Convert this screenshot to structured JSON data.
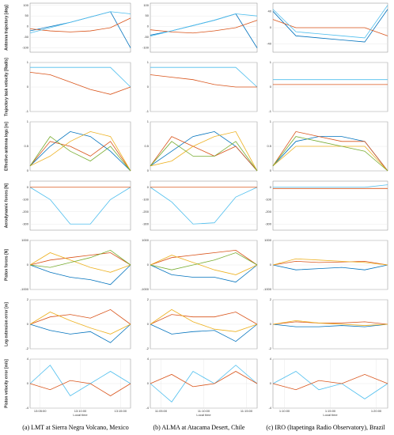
{
  "captions": [
    "(a) LMT at Sierra Negra Volcano, Mexico",
    "(b) ALMA at Atacama Desert, Chile",
    "(c) IRO (Itapetinga Radio Observatory), Brazil"
  ],
  "chart_data": [
    {
      "type": "line",
      "ylabel": "Antenna trajectory [deg]",
      "x": [
        0,
        2,
        4,
        6,
        8,
        10
      ],
      "xlim": [
        0,
        10
      ],
      "ylim": [
        -120,
        110
      ],
      "yticks": [
        -100,
        -50,
        0,
        50,
        100
      ],
      "series": [
        {
          "color": "#0072bd",
          "values": [
            -20,
            0,
            20,
            45,
            70,
            -100
          ]
        },
        {
          "color": "#d95319",
          "values": [
            -10,
            -20,
            -25,
            -20,
            -5,
            40
          ]
        },
        {
          "color": "#4dbeee",
          "values": [
            -30,
            -5,
            20,
            45,
            70,
            60
          ]
        }
      ]
    },
    {
      "type": "line",
      "x": [
        0,
        2,
        4,
        6,
        8,
        10
      ],
      "xlim": [
        0,
        10
      ],
      "ylim": [
        -120,
        110
      ],
      "yticks": [
        -100,
        -50,
        0,
        50,
        100
      ],
      "series": [
        {
          "color": "#0072bd",
          "values": [
            -40,
            -20,
            5,
            30,
            60,
            -100
          ]
        },
        {
          "color": "#d95319",
          "values": [
            -15,
            -25,
            -30,
            -20,
            -5,
            30
          ]
        },
        {
          "color": "#4dbeee",
          "values": [
            -45,
            -20,
            5,
            30,
            60,
            50
          ]
        }
      ]
    },
    {
      "type": "line",
      "x": [
        0,
        2,
        4,
        6,
        8,
        10
      ],
      "xlim": [
        0,
        10
      ],
      "ylim": [
        -60,
        60
      ],
      "yticks": [
        -40,
        0,
        40
      ],
      "series": [
        {
          "color": "#0072bd",
          "values": [
            40,
            -20,
            -25,
            -30,
            -35,
            45
          ]
        },
        {
          "color": "#d95319",
          "values": [
            20,
            0,
            0,
            0,
            0,
            -20
          ]
        },
        {
          "color": "#4dbeee",
          "values": [
            45,
            -10,
            -15,
            -20,
            -25,
            55
          ]
        }
      ]
    },
    {
      "type": "line",
      "ylabel": "Trajectory task velocity [Rad/s]",
      "x": [
        0,
        2,
        4,
        6,
        8,
        10
      ],
      "xlim": [
        0,
        10
      ],
      "ylim": [
        -1,
        1
      ],
      "yticks": [
        -1,
        0,
        1
      ],
      "series": [
        {
          "color": "#4dbeee",
          "values": [
            0.8,
            0.8,
            0.8,
            0.8,
            0.8,
            0
          ]
        },
        {
          "color": "#d95319",
          "values": [
            0.6,
            0.5,
            0.2,
            -0.1,
            -0.3,
            0
          ]
        }
      ]
    },
    {
      "type": "line",
      "x": [
        0,
        2,
        4,
        6,
        8,
        10
      ],
      "xlim": [
        0,
        10
      ],
      "ylim": [
        -1,
        1
      ],
      "yticks": [
        -1,
        0,
        1
      ],
      "series": [
        {
          "color": "#4dbeee",
          "values": [
            0.8,
            0.8,
            0.8,
            0.8,
            0.8,
            0
          ]
        },
        {
          "color": "#d95319",
          "values": [
            0.5,
            0.4,
            0.3,
            0.1,
            0,
            0
          ]
        }
      ]
    },
    {
      "type": "line",
      "x": [
        0,
        2,
        4,
        6,
        8,
        10
      ],
      "xlim": [
        0,
        10
      ],
      "ylim": [
        -1,
        1
      ],
      "yticks": [
        -1,
        0,
        1
      ],
      "series": [
        {
          "color": "#4dbeee",
          "values": [
            0.3,
            0.3,
            0.3,
            0.3,
            0.3,
            0.3
          ]
        },
        {
          "color": "#d95319",
          "values": [
            0.1,
            0.1,
            0.1,
            0.1,
            0.1,
            0.1
          ]
        }
      ]
    },
    {
      "type": "line",
      "ylabel": "Effective antenna legs [m]",
      "x": [
        0,
        2,
        4,
        6,
        8,
        10
      ],
      "xlim": [
        0,
        10
      ],
      "ylim": [
        0,
        1
      ],
      "yticks": [
        0,
        0.5,
        1
      ],
      "series": [
        {
          "color": "#0072bd",
          "values": [
            0.1,
            0.5,
            0.8,
            0.7,
            0.4,
            0
          ]
        },
        {
          "color": "#d95319",
          "values": [
            0.1,
            0.6,
            0.5,
            0.3,
            0.6,
            0
          ]
        },
        {
          "color": "#edb120",
          "values": [
            0.1,
            0.3,
            0.6,
            0.8,
            0.7,
            0
          ]
        },
        {
          "color": "#77ac30",
          "values": [
            0.1,
            0.7,
            0.4,
            0.2,
            0.5,
            0
          ]
        }
      ]
    },
    {
      "type": "line",
      "x": [
        0,
        2,
        4,
        6,
        8,
        10
      ],
      "xlim": [
        0,
        10
      ],
      "ylim": [
        0,
        1
      ],
      "yticks": [
        0,
        0.5,
        1
      ],
      "series": [
        {
          "color": "#0072bd",
          "values": [
            0.1,
            0.4,
            0.7,
            0.8,
            0.5,
            0
          ]
        },
        {
          "color": "#d95319",
          "values": [
            0.1,
            0.7,
            0.5,
            0.3,
            0.5,
            0
          ]
        },
        {
          "color": "#edb120",
          "values": [
            0.1,
            0.2,
            0.5,
            0.7,
            0.8,
            0
          ]
        },
        {
          "color": "#77ac30",
          "values": [
            0.1,
            0.6,
            0.3,
            0.3,
            0.6,
            0
          ]
        }
      ]
    },
    {
      "type": "line",
      "x": [
        0,
        2,
        4,
        6,
        8,
        10
      ],
      "xlim": [
        0,
        10
      ],
      "ylim": [
        0,
        1
      ],
      "yticks": [
        0,
        0.5,
        1
      ],
      "series": [
        {
          "color": "#0072bd",
          "values": [
            0.1,
            0.6,
            0.7,
            0.7,
            0.6,
            0
          ]
        },
        {
          "color": "#d95319",
          "values": [
            0.1,
            0.8,
            0.7,
            0.6,
            0.6,
            0
          ]
        },
        {
          "color": "#edb120",
          "values": [
            0.1,
            0.5,
            0.5,
            0.5,
            0.5,
            0
          ]
        },
        {
          "color": "#77ac30",
          "values": [
            0.1,
            0.7,
            0.6,
            0.5,
            0.4,
            0
          ]
        }
      ]
    },
    {
      "type": "line",
      "ylabel": "Aerodynamic forces [N]",
      "x": [
        0,
        2,
        4,
        6,
        8,
        10
      ],
      "xlim": [
        0,
        10
      ],
      "ylim": [
        -350,
        50
      ],
      "yticks": [
        -300,
        -200,
        -100,
        0
      ],
      "series": [
        {
          "color": "#4dbeee",
          "values": [
            0,
            -100,
            -300,
            -300,
            -100,
            0
          ]
        },
        {
          "color": "#d95319",
          "values": [
            0,
            0,
            0,
            0,
            0,
            0
          ]
        }
      ]
    },
    {
      "type": "line",
      "x": [
        0,
        2,
        4,
        6,
        8,
        10
      ],
      "xlim": [
        0,
        10
      ],
      "ylim": [
        -350,
        50
      ],
      "yticks": [
        -300,
        -200,
        -100,
        0
      ],
      "series": [
        {
          "color": "#4dbeee",
          "values": [
            0,
            -120,
            -300,
            -290,
            -80,
            0
          ]
        },
        {
          "color": "#d95319",
          "values": [
            0,
            0,
            0,
            0,
            0,
            0
          ]
        }
      ]
    },
    {
      "type": "line",
      "x": [
        0,
        2,
        4,
        6,
        8,
        10
      ],
      "xlim": [
        0,
        10
      ],
      "ylim": [
        -350,
        50
      ],
      "yticks": [
        -300,
        -200,
        -100,
        0
      ],
      "series": [
        {
          "color": "#4dbeee",
          "values": [
            0,
            0,
            0,
            0,
            0,
            20
          ]
        },
        {
          "color": "#d95319",
          "values": [
            -10,
            -10,
            -10,
            -10,
            -10,
            -10
          ]
        }
      ]
    },
    {
      "type": "line",
      "ylabel": "Piston forces [N]",
      "x": [
        0,
        2,
        4,
        6,
        8,
        10
      ],
      "xlim": [
        0,
        10
      ],
      "ylim": [
        -1000,
        1000
      ],
      "yticks": [
        -1000,
        0,
        1000
      ],
      "series": [
        {
          "color": "#0072bd",
          "values": [
            0,
            -300,
            -500,
            -600,
            -800,
            0
          ]
        },
        {
          "color": "#d95319",
          "values": [
            0,
            200,
            300,
            400,
            500,
            0
          ]
        },
        {
          "color": "#edb120",
          "values": [
            0,
            500,
            200,
            -100,
            -300,
            0
          ]
        },
        {
          "color": "#77ac30",
          "values": [
            0,
            -100,
            100,
            300,
            600,
            0
          ]
        }
      ]
    },
    {
      "type": "line",
      "x": [
        0,
        2,
        4,
        6,
        8,
        10
      ],
      "xlim": [
        0,
        10
      ],
      "ylim": [
        -1000,
        1000
      ],
      "yticks": [
        -1000,
        0,
        1000
      ],
      "series": [
        {
          "color": "#0072bd",
          "values": [
            0,
            -400,
            -500,
            -500,
            -700,
            0
          ]
        },
        {
          "color": "#d95319",
          "values": [
            0,
            300,
            400,
            500,
            600,
            0
          ]
        },
        {
          "color": "#edb120",
          "values": [
            0,
            400,
            100,
            -200,
            -400,
            0
          ]
        },
        {
          "color": "#77ac30",
          "values": [
            0,
            -200,
            0,
            200,
            500,
            0
          ]
        }
      ]
    },
    {
      "type": "line",
      "x": [
        0,
        2,
        4,
        6,
        8,
        10
      ],
      "xlim": [
        0,
        10
      ],
      "ylim": [
        -1000,
        1000
      ],
      "yticks": [
        -1000,
        0,
        1000
      ],
      "series": [
        {
          "color": "#0072bd",
          "values": [
            0,
            -200,
            -150,
            -100,
            -200,
            0
          ]
        },
        {
          "color": "#d95319",
          "values": [
            0,
            150,
            100,
            120,
            150,
            0
          ]
        },
        {
          "color": "#edb120",
          "values": [
            0,
            250,
            200,
            150,
            100,
            0
          ]
        }
      ]
    },
    {
      "type": "line",
      "ylabel": "Leg extension error [m]",
      "x": [
        0,
        2,
        4,
        6,
        8,
        10
      ],
      "xlim": [
        0,
        10
      ],
      "ylim": [
        -2,
        2
      ],
      "yticks": [
        -2,
        0,
        2
      ],
      "series": [
        {
          "color": "#0072bd",
          "values": [
            0,
            -0.5,
            -0.8,
            -0.6,
            -1.5,
            0
          ]
        },
        {
          "color": "#d95319",
          "values": [
            0,
            0.6,
            0.8,
            0.5,
            1.2,
            0
          ]
        },
        {
          "color": "#edb120",
          "values": [
            0,
            1,
            0.3,
            -0.3,
            -0.8,
            0
          ]
        }
      ]
    },
    {
      "type": "line",
      "x": [
        0,
        2,
        4,
        6,
        8,
        10
      ],
      "xlim": [
        0,
        10
      ],
      "ylim": [
        -2,
        2
      ],
      "yticks": [
        -2,
        0,
        2
      ],
      "series": [
        {
          "color": "#0072bd",
          "values": [
            0,
            -0.8,
            -0.6,
            -0.5,
            -1.4,
            0
          ]
        },
        {
          "color": "#d95319",
          "values": [
            0,
            0.8,
            0.6,
            0.6,
            1,
            0
          ]
        },
        {
          "color": "#edb120",
          "values": [
            0,
            1.2,
            0.2,
            -0.4,
            -0.6,
            0
          ]
        }
      ]
    },
    {
      "type": "line",
      "x": [
        0,
        2,
        4,
        6,
        8,
        10
      ],
      "xlim": [
        0,
        10
      ],
      "ylim": [
        -2,
        2
      ],
      "yticks": [
        -2,
        0,
        2
      ],
      "series": [
        {
          "color": "#0072bd",
          "values": [
            0,
            -0.2,
            -0.2,
            -0.1,
            -0.2,
            0
          ]
        },
        {
          "color": "#d95319",
          "values": [
            0,
            0.2,
            0.1,
            0.1,
            0.2,
            0
          ]
        },
        {
          "color": "#edb120",
          "values": [
            0,
            0.3,
            0.1,
            0,
            -0.1,
            0
          ]
        }
      ]
    },
    {
      "type": "line",
      "ylabel": "Piston velocity error [m/s]",
      "xlabel": "Local time",
      "x": [
        0,
        2,
        4,
        6,
        8,
        10
      ],
      "xlim": [
        0,
        10
      ],
      "ylim": [
        -4,
        4
      ],
      "yticks": [
        -4,
        0,
        4
      ],
      "xticks": [
        {
          "value": 1,
          "label": "13:05:00"
        },
        {
          "value": 5,
          "label": "13:10:00"
        },
        {
          "value": 9,
          "label": "13:15:00"
        }
      ],
      "series": [
        {
          "color": "#4dbeee",
          "values": [
            0,
            3,
            -2,
            0,
            2,
            0
          ]
        },
        {
          "color": "#d95319",
          "values": [
            0,
            -1,
            0.5,
            0,
            -2,
            0
          ]
        }
      ]
    },
    {
      "type": "line",
      "xlabel": "Local time",
      "x": [
        0,
        2,
        4,
        6,
        8,
        10
      ],
      "xlim": [
        0,
        10
      ],
      "ylim": [
        -4,
        4
      ],
      "yticks": [
        -4,
        0,
        4
      ],
      "xticks": [
        {
          "value": 1,
          "label": "11:05:00"
        },
        {
          "value": 5,
          "label": "11:10:00"
        },
        {
          "value": 9,
          "label": "11:15:00"
        }
      ],
      "series": [
        {
          "color": "#4dbeee",
          "values": [
            0,
            -3,
            2,
            0,
            3,
            0
          ]
        },
        {
          "color": "#d95319",
          "values": [
            0,
            1.5,
            -0.5,
            0,
            2,
            0
          ]
        }
      ]
    },
    {
      "type": "line",
      "xlabel": "Local time",
      "x": [
        0,
        2,
        4,
        6,
        8,
        10
      ],
      "xlim": [
        0,
        10
      ],
      "ylim": [
        -4,
        4
      ],
      "yticks": [
        -4,
        0,
        4
      ],
      "xticks": [
        {
          "value": 1,
          "label": "1:10:00"
        },
        {
          "value": 5,
          "label": "1:15:00"
        },
        {
          "value": 9,
          "label": "1:20:00"
        }
      ],
      "series": [
        {
          "color": "#4dbeee",
          "values": [
            0,
            2,
            -1,
            0,
            -2.5,
            0
          ]
        },
        {
          "color": "#d95319",
          "values": [
            0,
            -1,
            0.5,
            0,
            1.5,
            0
          ]
        }
      ]
    }
  ]
}
